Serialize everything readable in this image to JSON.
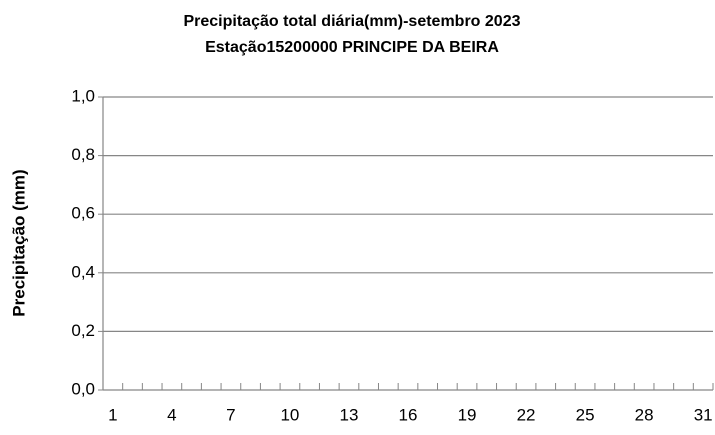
{
  "chart_data": {
    "type": "bar",
    "title": "Precipitação total diária(mm)-setembro 2023",
    "subtitle": "Estação15200000 PRINCIPE DA BEIRA",
    "y_label": "Precipitação (mm)",
    "categories": [
      "1",
      null,
      null,
      "4",
      null,
      null,
      "7",
      null,
      null,
      "10",
      null,
      null,
      "13",
      null,
      null,
      "16",
      null,
      null,
      "19",
      null,
      null,
      "22",
      null,
      null,
      "25",
      null,
      null,
      "28",
      null,
      null,
      "31"
    ],
    "values": [
      0,
      0,
      0,
      0,
      0,
      0,
      0,
      0,
      0,
      0,
      0,
      0,
      0,
      0,
      0,
      0,
      0,
      0,
      0,
      0,
      0,
      0,
      0,
      0,
      0,
      0,
      0,
      0,
      0,
      0,
      0
    ],
    "color": "#4f81bd",
    "ylim": [
      0,
      1
    ],
    "yticks": [
      {
        "value": 0,
        "label": "0,0"
      },
      {
        "value": 0.2,
        "label": "0,2"
      },
      {
        "value": 0.4,
        "label": "0,4"
      },
      {
        "value": 0.6,
        "label": "0,6"
      },
      {
        "value": 0.8,
        "label": "0,8"
      },
      {
        "value": 1,
        "label": "1,0"
      }
    ],
    "grid": true
  }
}
